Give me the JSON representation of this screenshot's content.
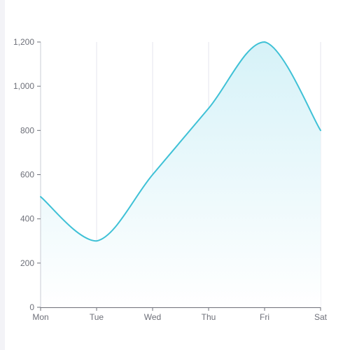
{
  "chart_data": {
    "type": "area",
    "smooth": true,
    "categories": [
      "Mon",
      "Tue",
      "Wed",
      "Thu",
      "Fri",
      "Sat"
    ],
    "values": [
      500,
      300,
      600,
      900,
      1200,
      800
    ],
    "ylim": [
      0,
      1200
    ],
    "yticks": [
      0,
      200,
      400,
      600,
      800,
      1000,
      1200
    ],
    "ytick_labels": [
      "0",
      "200",
      "400",
      "600",
      "800",
      "1,000",
      "1,200"
    ],
    "grid": "vertical",
    "colors": {
      "line": "#3fc1d6",
      "area_top": "#d6f2f8",
      "area_bottom": "#ffffff",
      "grid": "#e4e6ec",
      "axis": "#6e7079",
      "label": "#6e7079",
      "side_strip": "#f3f3f7"
    }
  }
}
